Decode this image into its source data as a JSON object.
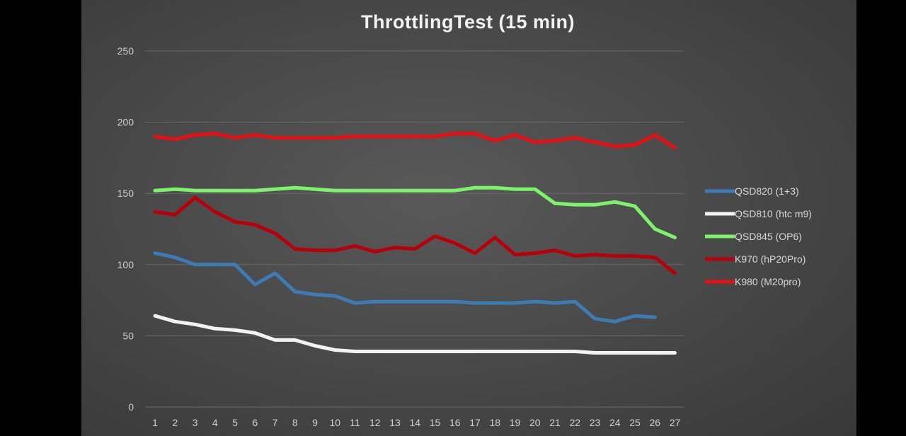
{
  "chart_data": {
    "type": "line",
    "title": "ThrottlingTest (15 min)",
    "xlabel": "",
    "ylabel": "",
    "x": [
      1,
      2,
      3,
      4,
      5,
      6,
      7,
      8,
      9,
      10,
      11,
      12,
      13,
      14,
      15,
      16,
      17,
      18,
      19,
      20,
      21,
      22,
      23,
      24,
      25,
      26,
      27
    ],
    "ylim": [
      0,
      250
    ],
    "yticks": [
      0,
      50,
      100,
      150,
      200,
      250
    ],
    "grid": "horizontal",
    "legend_position": "right",
    "series": [
      {
        "name": "QSD820 (1+3)",
        "color": "#3e7bb5",
        "values": [
          108,
          105,
          100,
          100,
          100,
          86,
          94,
          81,
          79,
          78,
          73,
          74,
          74,
          74,
          74,
          74,
          73,
          73,
          73,
          74,
          73,
          74,
          62,
          60,
          64,
          63,
          null
        ]
      },
      {
        "name": "QSD810 (htc m9)",
        "color": "#f2f2f2",
        "values": [
          64,
          60,
          58,
          55,
          54,
          52,
          47,
          47,
          43,
          40,
          39,
          39,
          39,
          39,
          39,
          39,
          39,
          39,
          39,
          39,
          39,
          39,
          38,
          38,
          38,
          38,
          38
        ]
      },
      {
        "name": "QSD845 (OP6)",
        "color": "#7df36b",
        "values": [
          152,
          153,
          152,
          152,
          152,
          152,
          153,
          154,
          153,
          152,
          152,
          152,
          152,
          152,
          152,
          152,
          154,
          154,
          153,
          153,
          143,
          142,
          142,
          144,
          141,
          125,
          119
        ]
      },
      {
        "name": "K970 (hP20Pro)",
        "color": "#b8000a",
        "values": [
          137,
          135,
          147,
          137,
          130,
          128,
          122,
          111,
          110,
          110,
          113,
          109,
          112,
          111,
          120,
          115,
          108,
          119,
          107,
          108,
          110,
          106,
          107,
          106,
          106,
          105,
          94
        ]
      },
      {
        "name": "K980 (M20pro)",
        "color": "#e50f14",
        "values": [
          190,
          188,
          191,
          192,
          189,
          191,
          189,
          189,
          189,
          189,
          190,
          190,
          190,
          190,
          190,
          192,
          192,
          187,
          191,
          186,
          187,
          189,
          186,
          183,
          184,
          191,
          182
        ]
      }
    ]
  }
}
